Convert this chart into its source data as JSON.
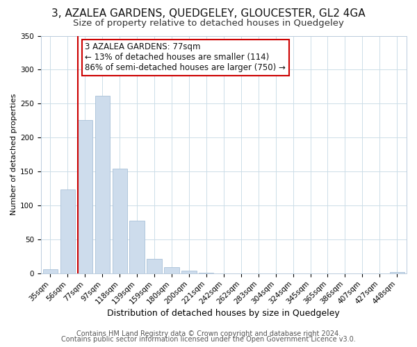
{
  "title": "3, AZALEA GARDENS, QUEDGELEY, GLOUCESTER, GL2 4GA",
  "subtitle": "Size of property relative to detached houses in Quedgeley",
  "xlabel": "Distribution of detached houses by size in Quedgeley",
  "ylabel": "Number of detached properties",
  "bar_labels": [
    "35sqm",
    "56sqm",
    "77sqm",
    "97sqm",
    "118sqm",
    "139sqm",
    "159sqm",
    "180sqm",
    "200sqm",
    "221sqm",
    "242sqm",
    "262sqm",
    "283sqm",
    "304sqm",
    "324sqm",
    "345sqm",
    "365sqm",
    "386sqm",
    "407sqm",
    "427sqm",
    "448sqm"
  ],
  "bar_values": [
    6,
    123,
    226,
    262,
    154,
    77,
    21,
    9,
    4,
    1,
    0,
    0,
    0,
    0,
    0,
    0,
    0,
    0,
    0,
    0,
    2
  ],
  "bar_color": "#cddcec",
  "bar_edge_color": "#a8c0d8",
  "highlight_line_color": "#cc0000",
  "ylim": [
    0,
    350
  ],
  "yticks": [
    0,
    50,
    100,
    150,
    200,
    250,
    300,
    350
  ],
  "annotation_text": "3 AZALEA GARDENS: 77sqm\n← 13% of detached houses are smaller (114)\n86% of semi-detached houses are larger (750) →",
  "annotation_box_color": "#ffffff",
  "annotation_box_edge_color": "#cc0000",
  "footer_line1": "Contains HM Land Registry data © Crown copyright and database right 2024.",
  "footer_line2": "Contains public sector information licensed under the Open Government Licence v3.0.",
  "title_fontsize": 11,
  "subtitle_fontsize": 9.5,
  "xlabel_fontsize": 9,
  "ylabel_fontsize": 8,
  "tick_fontsize": 7.5,
  "footer_fontsize": 7,
  "annotation_fontsize": 8.5,
  "background_color": "#ffffff",
  "grid_color": "#ccdde8"
}
